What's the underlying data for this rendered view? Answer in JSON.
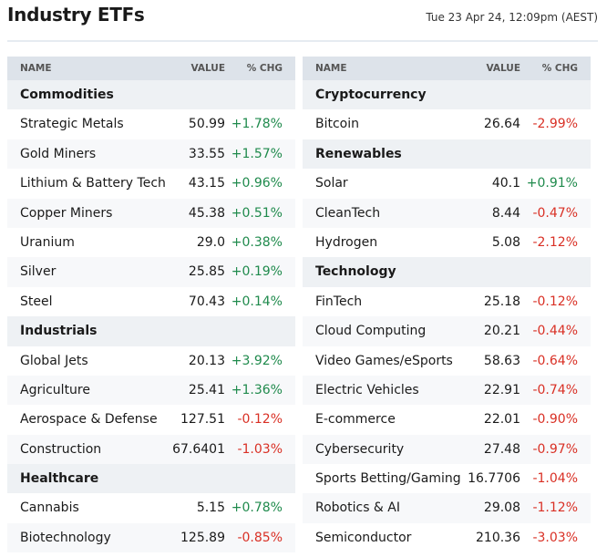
{
  "header": {
    "title": "Industry ETFs",
    "timestamp": "Tue 23 Apr 24, 12:09pm (AEST)"
  },
  "tables": [
    {
      "columns": [
        "NAME",
        "VALUE",
        "% CHG"
      ],
      "groups": [
        {
          "name": "Commodities",
          "rows": [
            [
              "Strategic Metals",
              "50.99",
              "+1.78%"
            ],
            [
              "Gold Miners",
              "33.55",
              "+1.57%"
            ],
            [
              "Lithium & Battery Tech",
              "43.15",
              "+0.96%"
            ],
            [
              "Copper Miners",
              "45.38",
              "+0.51%"
            ],
            [
              "Uranium",
              "29.0",
              "+0.38%"
            ],
            [
              "Silver",
              "25.85",
              "+0.19%"
            ],
            [
              "Steel",
              "70.43",
              "+0.14%"
            ]
          ]
        },
        {
          "name": "Industrials",
          "rows": [
            [
              "Global Jets",
              "20.13",
              "+3.92%"
            ],
            [
              "Agriculture",
              "25.41",
              "+1.36%"
            ],
            [
              "Aerospace & Defense",
              "127.51",
              "-0.12%"
            ],
            [
              "Construction",
              "67.6401",
              "-1.03%"
            ]
          ]
        },
        {
          "name": "Healthcare",
          "rows": [
            [
              "Cannabis",
              "5.15",
              "+0.78%"
            ],
            [
              "Biotechnology",
              "125.89",
              "-0.85%"
            ]
          ]
        }
      ]
    },
    {
      "columns": [
        "NAME",
        "VALUE",
        "% CHG"
      ],
      "groups": [
        {
          "name": "Cryptocurrency",
          "rows": [
            [
              "Bitcoin",
              "26.64",
              "-2.99%"
            ]
          ]
        },
        {
          "name": "Renewables",
          "rows": [
            [
              "Solar",
              "40.1",
              "+0.91%"
            ],
            [
              "CleanTech",
              "8.44",
              "-0.47%"
            ],
            [
              "Hydrogen",
              "5.08",
              "-2.12%"
            ]
          ]
        },
        {
          "name": "Technology",
          "rows": [
            [
              "FinTech",
              "25.18",
              "-0.12%"
            ],
            [
              "Cloud Computing",
              "20.21",
              "-0.44%"
            ],
            [
              "Video Games/eSports",
              "58.63",
              "-0.64%"
            ],
            [
              "Electric Vehicles",
              "22.91",
              "-0.74%"
            ],
            [
              "E-commerce",
              "22.01",
              "-0.90%"
            ],
            [
              "Cybersecurity",
              "27.48",
              "-0.97%"
            ],
            [
              "Sports Betting/Gaming",
              "16.7706",
              "-1.04%"
            ],
            [
              "Robotics & AI",
              "29.08",
              "-1.12%"
            ],
            [
              "Semiconductor",
              "210.36",
              "-3.03%"
            ]
          ]
        }
      ]
    }
  ]
}
